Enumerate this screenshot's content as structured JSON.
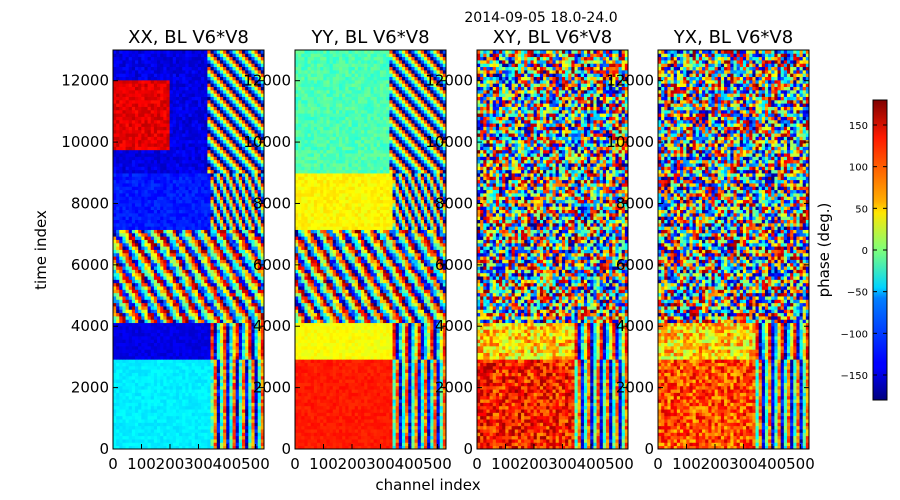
{
  "figure": {
    "suptitle": "2014-09-05 18.0-24.0",
    "xlabel": "channel index",
    "ylabel": "time index",
    "colorbar_label": "phase (deg.)",
    "colorbar_colormap": "jet"
  },
  "chart_data": [
    {
      "type": "heatmap",
      "title": "XX, BL V6*V8",
      "xlim": [
        0,
        530
      ],
      "ylim": [
        0,
        13000
      ],
      "xticks": [
        "0",
        "100",
        "200",
        "300",
        "400",
        "500"
      ],
      "yticks": [
        "0",
        "2000",
        "4000",
        "6000",
        "8000",
        "10000",
        "12000"
      ],
      "ytick_values": [
        0,
        2000,
        4000,
        6000,
        8000,
        10000,
        12000
      ],
      "xtick_values": [
        0,
        100,
        200,
        300,
        400,
        500
      ],
      "value_range": [
        -180,
        180
      ],
      "colormap": "jet"
    },
    {
      "type": "heatmap",
      "title": "YY, BL V6*V8",
      "xlim": [
        0,
        530
      ],
      "ylim": [
        0,
        13000
      ],
      "xticks": [
        "0",
        "100",
        "200",
        "300",
        "400",
        "500"
      ],
      "yticks": [
        "0",
        "2000",
        "4000",
        "6000",
        "8000",
        "10000",
        "12000"
      ],
      "ytick_values": [
        0,
        2000,
        4000,
        6000,
        8000,
        10000,
        12000
      ],
      "xtick_values": [
        0,
        100,
        200,
        300,
        400,
        500
      ],
      "value_range": [
        -180,
        180
      ],
      "colormap": "jet"
    },
    {
      "type": "heatmap",
      "title": "XY, BL V6*V8",
      "xlim": [
        0,
        530
      ],
      "ylim": [
        0,
        13000
      ],
      "xticks": [
        "0",
        "100",
        "200",
        "300",
        "400",
        "500"
      ],
      "yticks": [
        "0",
        "2000",
        "4000",
        "6000",
        "8000",
        "10000",
        "12000"
      ],
      "ytick_values": [
        0,
        2000,
        4000,
        6000,
        8000,
        10000,
        12000
      ],
      "xtick_values": [
        0,
        100,
        200,
        300,
        400,
        500
      ],
      "value_range": [
        -180,
        180
      ],
      "colormap": "jet"
    },
    {
      "type": "heatmap",
      "title": "YX, BL V6*V8",
      "xlim": [
        0,
        530
      ],
      "ylim": [
        0,
        13000
      ],
      "xticks": [
        "0",
        "100",
        "200",
        "300",
        "400",
        "500"
      ],
      "yticks": [
        "0",
        "2000",
        "4000",
        "6000",
        "8000",
        "10000",
        "12000"
      ],
      "ytick_values": [
        0,
        2000,
        4000,
        6000,
        8000,
        10000,
        12000
      ],
      "xtick_values": [
        0,
        100,
        200,
        300,
        400,
        500
      ],
      "value_range": [
        -180,
        180
      ],
      "colormap": "jet"
    }
  ],
  "colorbar": {
    "range": [
      -180,
      180
    ],
    "ticks": [
      "150",
      "100",
      "50",
      "0",
      "−50",
      "−100",
      "−150"
    ],
    "tick_values": [
      150,
      100,
      50,
      0,
      -50,
      -100,
      -150
    ]
  }
}
